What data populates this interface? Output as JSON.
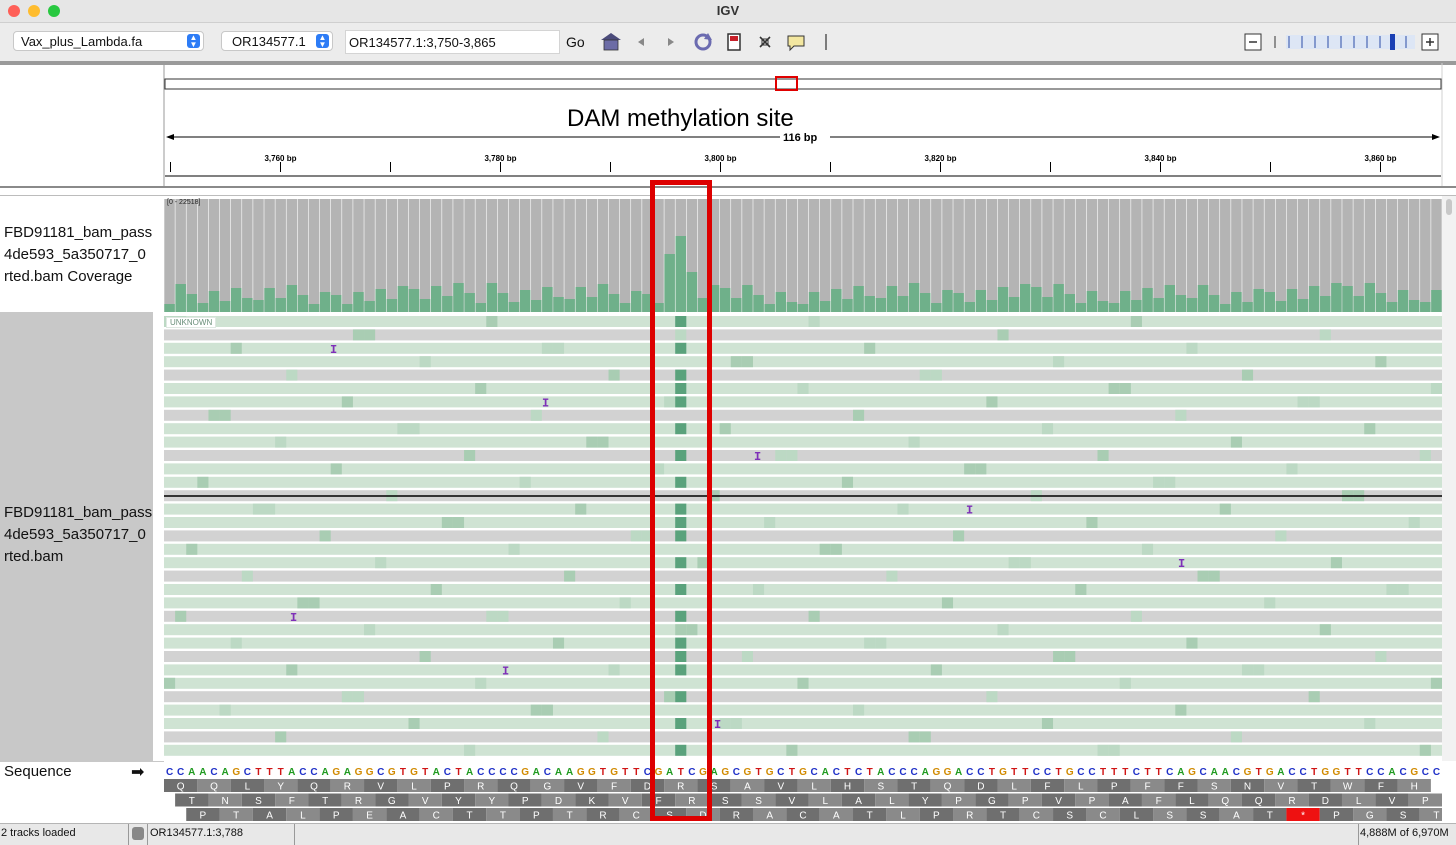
{
  "window": {
    "title": "IGV"
  },
  "toolbar": {
    "genome": "Vax_plus_Lambda.fa",
    "chromosome": "OR134577.1",
    "locus": "OR134577.1:3,750-3,865",
    "go_label": "Go",
    "icons": [
      "home-icon",
      "back-icon",
      "forward-icon",
      "refresh-icon",
      "roi-icon",
      "resize-icon",
      "popup-icon",
      "zoom-out-icon",
      "zoom-in-icon"
    ]
  },
  "ruler": {
    "annotation": "DAM methylation site",
    "span_label": "116 bp",
    "ticks": [
      "3,760 bp",
      "3,780 bp",
      "3,800 bp",
      "3,820 bp",
      "3,840 bp",
      "3,860 bp"
    ],
    "view_start": 3750,
    "view_end": 3865
  },
  "tracks": {
    "coverage_label": "FBD91181_bam_pass_4de593_5a350717_0_sorted.bam Coverage",
    "coverage_label_lines": [
      "FBD91181_bam_pass",
      "4de593_5a350717_0",
      "rted.bam Coverage"
    ],
    "coverage_range": "[0 - 22518]",
    "alignment_label_lines": [
      "FBD91181_bam_pass",
      "4de593_5a350717_0",
      "rted.bam"
    ],
    "unknown_tag": "UNKNOWN",
    "sequence_label": "Sequence",
    "sequence_arrow": "➡"
  },
  "sequence": {
    "bases": "CCAACAGCTTTACCAGAGGCGTGTACTACCCCGACAAGGTGTTCGATCGAGCGTGCTGCACTCTACCCAGGACCTGTTCCTGCCTTTCTTCAGCAACGTGACCTGGTTCCACGCC",
    "frame1": "QQLYQRVLPRQGVFDRSAVLHSTQDLFLPFFSNVTWFH",
    "frame2": "TNSFTRGVYYPDKVFRSSVLALYPGPVPAFLQQRDLVPR",
    "frame3": "PTALPEACTTPTRCSDRACATLPRTCSCLSSAT*PGSTP"
  },
  "colors": {
    "A": "#1f9a1f",
    "C": "#1f30c8",
    "G": "#d18a00",
    "T": "#d01515",
    "coverage_gray": "#b4b4b4",
    "coverage_methyl": "#6fb08a",
    "read_gray": "#d2d2d2",
    "read_green": "#cfe3d3",
    "highlight": "#dd0000",
    "insertion": "#7e2fb8"
  },
  "status": {
    "tracks_loaded": "2 tracks loaded",
    "position": "OR134577.1:3,788",
    "memory": "4,888M of 6,970M"
  }
}
